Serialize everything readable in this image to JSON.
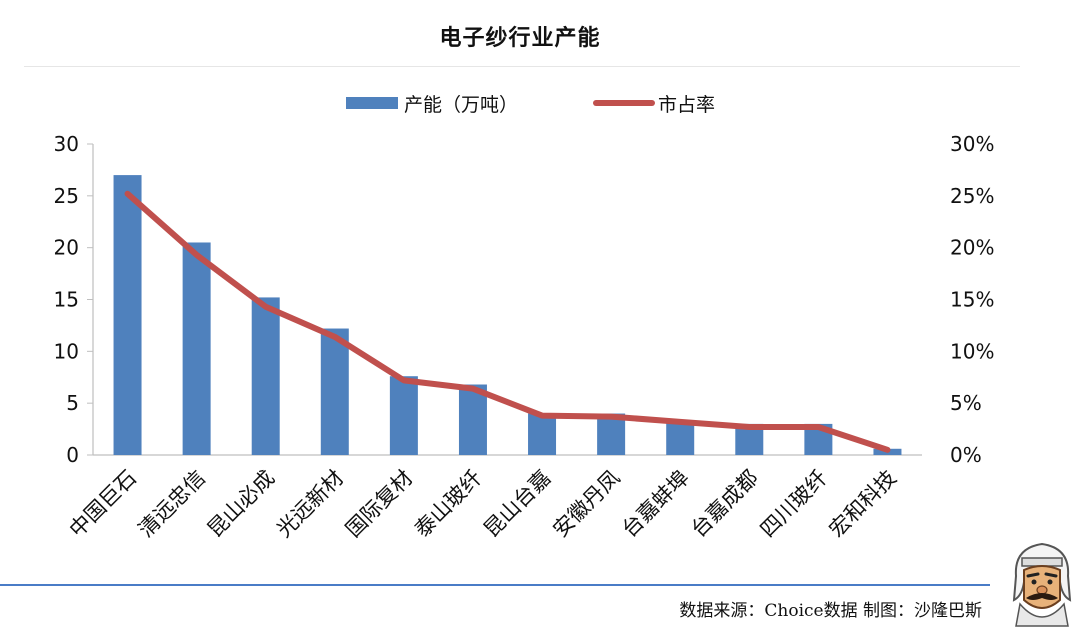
{
  "title": "电子纱行业产能",
  "source_text": "数据来源：Choice数据  制图：沙隆巴斯",
  "colors": {
    "bar": "#4f81bd",
    "line": "#c0504d",
    "axis": "#bfbfbf",
    "footer": "#4a7cc7"
  },
  "chart_data": {
    "type": "bar",
    "categories": [
      "中国巨石",
      "清远忠信",
      "昆山必成",
      "光远新材",
      "国际复材",
      "泰山玻纤",
      "昆山台嘉",
      "安徽丹凤",
      "台嘉蚌埠",
      "台嘉成都",
      "四川玻纤",
      "宏和科技"
    ],
    "series": [
      {
        "name": "产能（万吨）",
        "type": "bar",
        "axis": "left",
        "values": [
          27,
          20.5,
          15.2,
          12.2,
          7.6,
          6.8,
          4.0,
          4.0,
          3.3,
          3.0,
          3.0,
          0.6
        ]
      },
      {
        "name": "市占率",
        "type": "line",
        "axis": "right",
        "values": [
          25.2,
          19.3,
          14.3,
          11.4,
          7.2,
          6.4,
          3.8,
          3.7,
          3.2,
          2.7,
          2.7,
          0.5
        ]
      }
    ],
    "ylim": [
      0,
      30
    ],
    "y2lim": [
      0,
      30
    ],
    "yticks": [
      "0",
      "5",
      "10",
      "15",
      "20",
      "25",
      "30"
    ],
    "y2ticks": [
      "0%",
      "5%",
      "10%",
      "15%",
      "20%",
      "25%",
      "30%"
    ],
    "legend_position": "top",
    "grid": false
  }
}
